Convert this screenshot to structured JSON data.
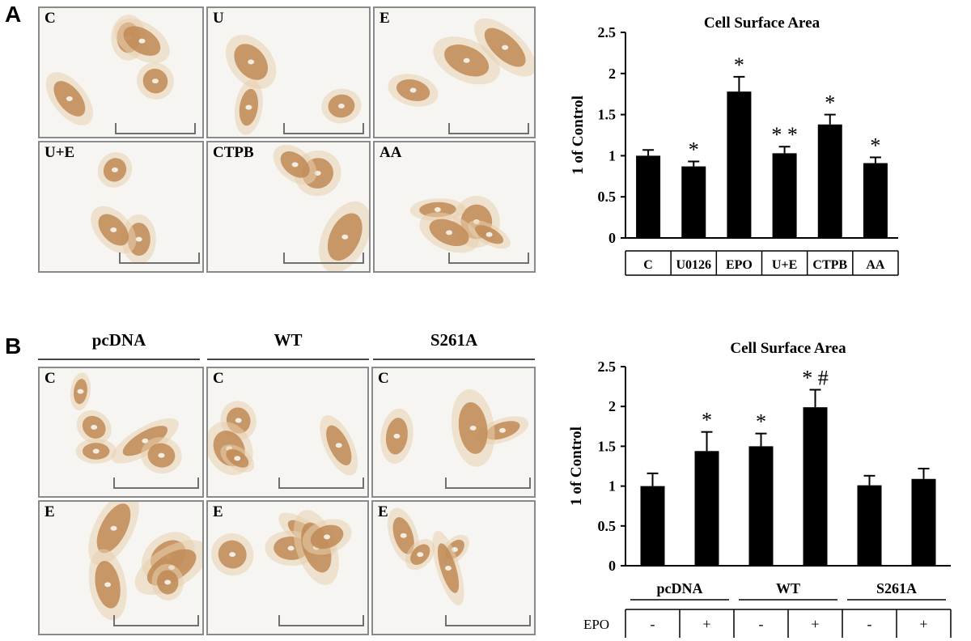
{
  "panel_a": {
    "letter": "A",
    "images": [
      {
        "tag": "C"
      },
      {
        "tag": "U"
      },
      {
        "tag": "E"
      },
      {
        "tag": "U+E"
      },
      {
        "tag": "CTPB"
      },
      {
        "tag": "AA"
      }
    ]
  },
  "panel_b": {
    "letter": "B",
    "groups": [
      "pcDNA",
      "WT",
      "S261A"
    ],
    "row_tags": [
      "C",
      "E"
    ]
  },
  "chart_data": [
    {
      "type": "bar",
      "title": "Cell Surface Area",
      "ylabel": "1 of Control",
      "xlabel": "",
      "categories": [
        "C",
        "U0126",
        "EPO",
        "U+E",
        "CTPB",
        "AA"
      ],
      "values": [
        1.0,
        0.87,
        1.78,
        1.03,
        1.38,
        0.91
      ],
      "errors": [
        0.07,
        0.06,
        0.18,
        0.08,
        0.12,
        0.07
      ],
      "annotations": [
        "",
        "*",
        "*",
        "**",
        "*",
        "*"
      ],
      "ylim": [
        0,
        2.5
      ],
      "yticks": [
        "0",
        "0.5",
        "1",
        "1.5",
        "2",
        "2.5"
      ],
      "bar_color": "#000000",
      "grid": false,
      "legend": "none"
    },
    {
      "type": "bar",
      "title": "Cell Surface Area",
      "ylabel": "1 of Control",
      "xlabel": "",
      "groups": [
        "pcDNA",
        "WT",
        "S261A"
      ],
      "row_label": "EPO",
      "categories": [
        "-",
        "+",
        "-",
        "+",
        "-",
        "+"
      ],
      "values": [
        1.0,
        1.44,
        1.5,
        1.99,
        1.01,
        1.09
      ],
      "errors": [
        0.16,
        0.24,
        0.16,
        0.22,
        0.12,
        0.13
      ],
      "annotations": [
        "",
        "*",
        "*",
        "* #",
        "",
        ""
      ],
      "ylim": [
        0,
        2.5
      ],
      "yticks": [
        "0",
        "0.5",
        "1",
        "1.5",
        "2",
        "2.5"
      ],
      "bar_color": "#000000",
      "grid": false,
      "legend": "none"
    }
  ]
}
